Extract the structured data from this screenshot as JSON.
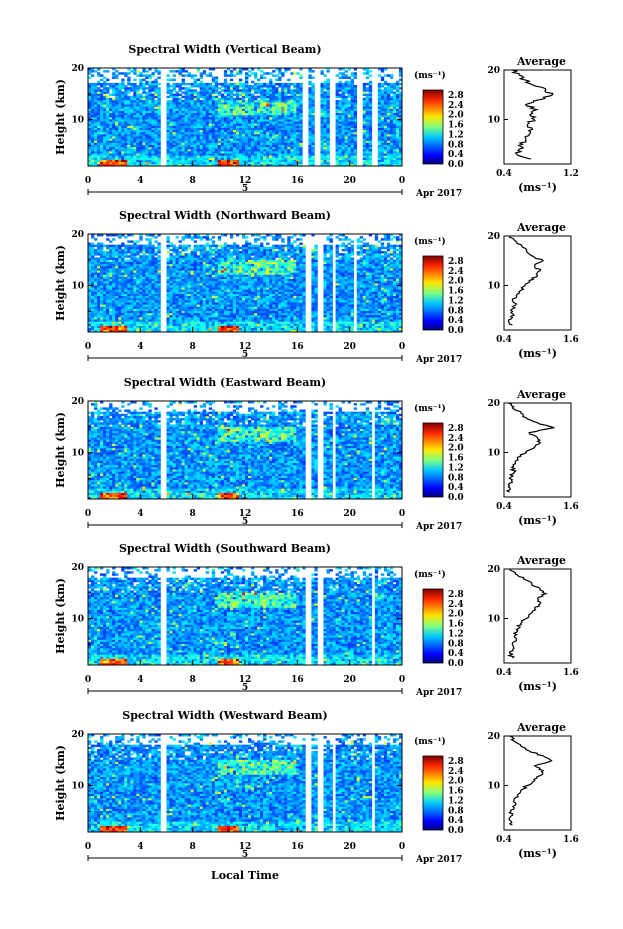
{
  "figure": {
    "xlabel": "Local Time",
    "date_label": "Apr 2017",
    "day_label": "5",
    "unit_label": "(ms⁻¹)",
    "average_title": "Average"
  },
  "chart_data": [
    {
      "type": "heatmap",
      "title": "Spectral Width (Vertical Beam)",
      "ylabel": "Height (km)",
      "xlabel": "",
      "xlim": [
        0,
        24
      ],
      "ylim": [
        1,
        20
      ],
      "xticks": [
        "0",
        "4",
        "8",
        "12",
        "16",
        "20",
        "0"
      ],
      "yticks": [
        "10",
        "20"
      ],
      "colorbar": {
        "ticks": [
          "2.8",
          "2.4",
          "2.0",
          "1.6",
          "1.2",
          "0.8",
          "0.4",
          "0.0"
        ],
        "range": [
          0,
          3.0
        ]
      },
      "gaps": [
        [
          5.6,
          6.1
        ],
        [
          16.4,
          16.8
        ],
        [
          17.3,
          17.7
        ],
        [
          18.4,
          18.9
        ],
        [
          20.6,
          21.0
        ],
        [
          21.8,
          22.2
        ]
      ],
      "cutoff_km": 17,
      "profile": {
        "title": "Average",
        "xlabel": "(ms⁻¹)",
        "xticks": [
          "0.4",
          "1.2"
        ],
        "yticks": [
          "10",
          "20"
        ],
        "xlim": [
          0.4,
          1.2
        ],
        "ylim": [
          1,
          20
        ],
        "heights": [
          2,
          3,
          4,
          5,
          6,
          7,
          8,
          9,
          10,
          11,
          12,
          13,
          14,
          15,
          16,
          17,
          18,
          19,
          20
        ],
        "values": [
          0.72,
          0.55,
          0.58,
          0.62,
          0.66,
          0.7,
          0.74,
          0.68,
          0.76,
          0.71,
          0.79,
          0.66,
          0.83,
          0.98,
          0.9,
          0.74,
          0.65,
          0.58,
          0.5
        ]
      }
    },
    {
      "type": "heatmap",
      "title": "Spectral Width (Northward Beam)",
      "ylabel": "Height (km)",
      "xlabel": "",
      "xlim": [
        0,
        24
      ],
      "ylim": [
        1,
        20
      ],
      "xticks": [
        "0",
        "4",
        "8",
        "12",
        "16",
        "20",
        "0"
      ],
      "yticks": [
        "10",
        "20"
      ],
      "colorbar": {
        "ticks": [
          "2.8",
          "2.4",
          "2.0",
          "1.6",
          "1.2",
          "0.8",
          "0.4",
          "0.0"
        ],
        "range": [
          0,
          3.0
        ]
      },
      "gaps": [
        [
          5.6,
          6.1
        ],
        [
          16.6,
          17.0
        ],
        [
          17.6,
          18.0
        ],
        [
          18.6,
          19.0
        ],
        [
          20.2,
          20.5
        ]
      ],
      "cutoff_km": 18,
      "profile": {
        "title": "Average",
        "xlabel": "(ms⁻¹)",
        "xticks": [
          "0.4",
          "1.6"
        ],
        "yticks": [
          "10",
          "20"
        ],
        "xlim": [
          0.4,
          1.6
        ],
        "ylim": [
          1,
          20
        ],
        "heights": [
          2,
          3,
          4,
          5,
          6,
          7,
          8,
          9,
          10,
          11,
          12,
          13,
          14,
          15,
          16,
          17,
          18,
          19,
          20
        ],
        "values": [
          0.55,
          0.48,
          0.58,
          0.52,
          0.6,
          0.55,
          0.62,
          0.7,
          0.78,
          0.85,
          1.0,
          1.05,
          0.95,
          1.1,
          0.9,
          0.8,
          0.72,
          0.6,
          0.5
        ]
      }
    },
    {
      "type": "heatmap",
      "title": "Spectral Width (Eastward Beam)",
      "ylabel": "Height (km)",
      "xlabel": "",
      "xlim": [
        0,
        24
      ],
      "ylim": [
        1,
        20
      ],
      "xticks": [
        "0",
        "4",
        "8",
        "12",
        "16",
        "20",
        "0"
      ],
      "yticks": [
        "10",
        "20"
      ],
      "colorbar": {
        "ticks": [
          "2.8",
          "2.4",
          "2.0",
          "1.6",
          "1.2",
          "0.8",
          "0.4",
          "0.0"
        ],
        "range": [
          0,
          3.0
        ]
      },
      "gaps": [
        [
          5.6,
          6.1
        ],
        [
          16.6,
          17.0
        ],
        [
          17.6,
          18.0
        ],
        [
          18.6,
          19.0
        ],
        [
          21.6,
          22.0
        ]
      ],
      "cutoff_km": 18,
      "profile": {
        "title": "Average",
        "xlabel": "(ms⁻¹)",
        "xticks": [
          "0.4",
          "1.6"
        ],
        "yticks": [
          "10",
          "20"
        ],
        "xlim": [
          0.4,
          1.6
        ],
        "ylim": [
          1,
          20
        ],
        "heights": [
          2,
          3,
          4,
          5,
          6,
          7,
          8,
          9,
          10,
          11,
          12,
          13,
          14,
          15,
          16,
          17,
          18,
          19,
          20
        ],
        "values": [
          0.5,
          0.48,
          0.55,
          0.52,
          0.58,
          0.54,
          0.6,
          0.64,
          0.8,
          0.95,
          1.05,
          1.0,
          0.85,
          1.3,
          1.0,
          0.8,
          0.7,
          0.55,
          0.48
        ]
      }
    },
    {
      "type": "heatmap",
      "title": "Spectral Width (Southward Beam)",
      "ylabel": "Height (km)",
      "xlabel": "",
      "xlim": [
        0,
        24
      ],
      "ylim": [
        1,
        20
      ],
      "xticks": [
        "0",
        "4",
        "8",
        "12",
        "16",
        "20",
        "0"
      ],
      "yticks": [
        "10",
        "20"
      ],
      "colorbar": {
        "ticks": [
          "2.8",
          "2.4",
          "2.0",
          "1.6",
          "1.2",
          "0.8",
          "0.4",
          "0.0"
        ],
        "range": [
          0,
          3.0
        ]
      },
      "gaps": [
        [
          5.6,
          6.1
        ],
        [
          16.6,
          17.0
        ],
        [
          17.6,
          18.0
        ],
        [
          21.6,
          22.0
        ]
      ],
      "cutoff_km": 18,
      "profile": {
        "title": "Average",
        "xlabel": "(ms⁻¹)",
        "xticks": [
          "0.4",
          "1.6"
        ],
        "yticks": [
          "10",
          "20"
        ],
        "xlim": [
          0.4,
          1.6
        ],
        "ylim": [
          1,
          20
        ],
        "heights": [
          2,
          3,
          4,
          5,
          6,
          7,
          8,
          9,
          10,
          11,
          12,
          13,
          14,
          15,
          16,
          17,
          18,
          19,
          20
        ],
        "values": [
          0.55,
          0.5,
          0.58,
          0.55,
          0.62,
          0.58,
          0.66,
          0.7,
          0.8,
          0.88,
          0.95,
          1.05,
          1.0,
          1.15,
          1.05,
          0.9,
          0.75,
          0.6,
          0.5
        ]
      }
    },
    {
      "type": "heatmap",
      "title": "Spectral Width (Westward Beam)",
      "ylabel": "Height (km)",
      "xlabel": "Local Time",
      "xlim": [
        0,
        24
      ],
      "ylim": [
        1,
        20
      ],
      "xticks": [
        "0",
        "4",
        "8",
        "12",
        "16",
        "20",
        "0"
      ],
      "yticks": [
        "10",
        "20"
      ],
      "colorbar": {
        "ticks": [
          "2.8",
          "2.4",
          "2.0",
          "1.6",
          "1.2",
          "0.8",
          "0.4",
          "0.0"
        ],
        "range": [
          0,
          3.0
        ]
      },
      "gaps": [
        [
          5.6,
          6.1
        ],
        [
          16.6,
          17.0
        ],
        [
          17.6,
          18.0
        ],
        [
          18.6,
          19.0
        ],
        [
          21.6,
          22.0
        ]
      ],
      "cutoff_km": 18,
      "profile": {
        "title": "Average",
        "xlabel": "(ms⁻¹)",
        "xticks": [
          "0.4",
          "1.6"
        ],
        "yticks": [
          "10",
          "20"
        ],
        "xlim": [
          0.4,
          1.6
        ],
        "ylim": [
          1,
          20
        ],
        "heights": [
          2,
          3,
          4,
          5,
          6,
          7,
          8,
          9,
          10,
          11,
          12,
          13,
          14,
          15,
          16,
          17,
          18,
          19,
          20
        ],
        "values": [
          0.55,
          0.5,
          0.55,
          0.52,
          0.6,
          0.58,
          0.64,
          0.7,
          0.82,
          0.95,
          1.05,
          1.1,
          0.95,
          1.25,
          1.1,
          0.85,
          0.7,
          0.58,
          0.5
        ]
      }
    }
  ]
}
